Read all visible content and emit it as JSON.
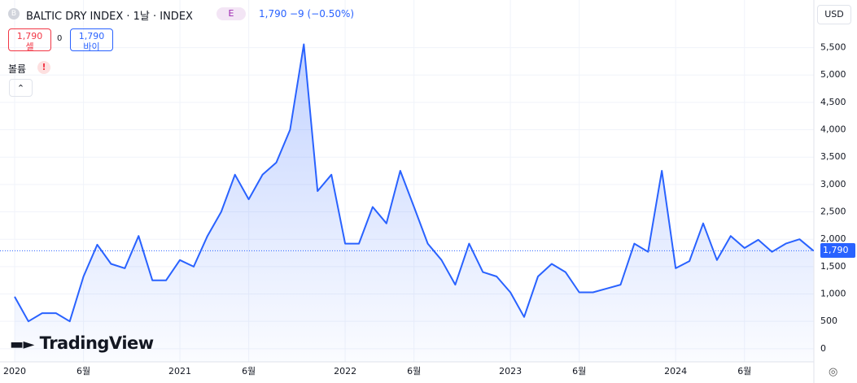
{
  "header": {
    "symbol": "BALTIC DRY INDEX · 1날 · INDEX",
    "badge": "E",
    "last": "1,790",
    "change": "−9 (−0.50%)",
    "sell_price": "1,790",
    "sell_label": "셀",
    "spread": "0",
    "buy_price": "1,790",
    "buy_label": "바이",
    "volume": "볼륨",
    "warning": "!",
    "currency": "USD",
    "logo": "TradingView"
  },
  "chart_data": {
    "type": "area",
    "categories": [
      "2020",
      null,
      null,
      null,
      null,
      "6월",
      null,
      null,
      null,
      null,
      null,
      null,
      "2021",
      null,
      null,
      null,
      null,
      "6월",
      null,
      null,
      null,
      null,
      null,
      null,
      "2022",
      null,
      null,
      null,
      null,
      "6월",
      null,
      null,
      null,
      null,
      null,
      null,
      "2023",
      null,
      null,
      null,
      null,
      "6월",
      null,
      null,
      null,
      null,
      null,
      null,
      "2024",
      null,
      null,
      null,
      null,
      "6월",
      null,
      null,
      null,
      null,
      null
    ],
    "series": [
      {
        "name": "BALTIC DRY INDEX",
        "color": "#2962ff",
        "values": [
          950,
          500,
          650,
          650,
          500,
          1320,
          1900,
          1550,
          1470,
          2060,
          1250,
          1250,
          1620,
          1500,
          2060,
          2500,
          3180,
          2730,
          3180,
          3400,
          4000,
          5560,
          2880,
          3180,
          1920,
          1920,
          2590,
          2290,
          3250,
          2590,
          1920,
          1620,
          1170,
          1920,
          1400,
          1320,
          1030,
          580,
          1320,
          1550,
          1400,
          1030,
          1030,
          1100,
          1170,
          1920,
          1770,
          3250,
          1470,
          1600,
          2290,
          1620,
          2060,
          1840,
          1990,
          1770,
          1920,
          2000,
          1790
        ]
      }
    ],
    "ylim": [
      -240,
      6370
    ],
    "yticks": [
      0,
      500,
      {
        "value": 1000,
        "label": "1,000"
      },
      {
        "value": 1500,
        "label": "1,500"
      },
      {
        "value": 2000,
        "label": "2,000"
      },
      {
        "value": 2500,
        "label": "2,500"
      },
      {
        "value": 3000,
        "label": "3,000"
      },
      {
        "value": 3500,
        "label": "3,500"
      },
      {
        "value": 4000,
        "label": "4,000"
      },
      {
        "value": 4500,
        "label": "4,500"
      },
      {
        "value": 5000,
        "label": "5,000"
      },
      {
        "value": 5500,
        "label": "5,500"
      }
    ],
    "grid": true
  }
}
